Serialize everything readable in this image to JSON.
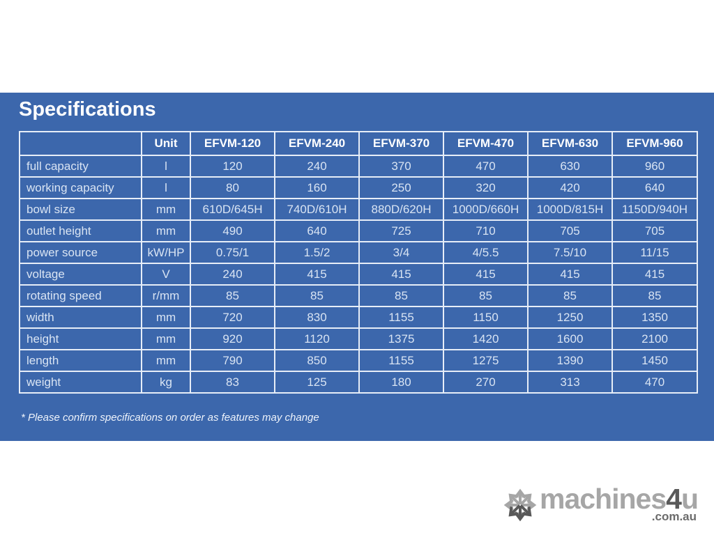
{
  "panel": {
    "title": "Specifications",
    "footnote": "* Please confirm specifications on order as features may change"
  },
  "table": {
    "columns": [
      "",
      "Unit",
      "EFVM-120",
      "EFVM-240",
      "EFVM-370",
      "EFVM-470",
      "EFVM-630",
      "EFVM-960"
    ],
    "rows": [
      {
        "label": "full capacity",
        "unit": "l",
        "values": [
          "120",
          "240",
          "370",
          "470",
          "630",
          "960"
        ]
      },
      {
        "label": "working capacity",
        "unit": "l",
        "values": [
          "80",
          "160",
          "250",
          "320",
          "420",
          "640"
        ]
      },
      {
        "label": "bowl size",
        "unit": "mm",
        "values": [
          "610D/645H",
          "740D/610H",
          "880D/620H",
          "1000D/660H",
          "1000D/815H",
          "1150D/940H"
        ]
      },
      {
        "label": "outlet height",
        "unit": "mm",
        "values": [
          "490",
          "640",
          "725",
          "710",
          "705",
          "705"
        ]
      },
      {
        "label": "power source",
        "unit": "kW/HP",
        "values": [
          "0.75/1",
          "1.5/2",
          "3/4",
          "4/5.5",
          "7.5/10",
          "11/15"
        ]
      },
      {
        "label": "voltage",
        "unit": "V",
        "values": [
          "240",
          "415",
          "415",
          "415",
          "415",
          "415"
        ]
      },
      {
        "label": "rotating speed",
        "unit": "r/mm",
        "values": [
          "85",
          "85",
          "85",
          "85",
          "85",
          "85"
        ]
      },
      {
        "label": "width",
        "unit": "mm",
        "values": [
          "720",
          "830",
          "1155",
          "1150",
          "1250",
          "1350"
        ]
      },
      {
        "label": "height",
        "unit": "mm",
        "values": [
          "920",
          "1120",
          "1375",
          "1420",
          "1600",
          "2100"
        ]
      },
      {
        "label": "length",
        "unit": "mm",
        "values": [
          "790",
          "850",
          "1155",
          "1275",
          "1390",
          "1450"
        ]
      },
      {
        "label": "weight",
        "unit": "kg",
        "values": [
          "83",
          "125",
          "180",
          "270",
          "313",
          "470"
        ]
      }
    ]
  },
  "logo": {
    "icon": "snowflake-asterisk-icon",
    "part1": "machines",
    "part2": "4",
    "part3": "u",
    "domain": ".com.au"
  },
  "colors": {
    "panel_blue": "#3c67ac",
    "grid_line": "#e7eef8",
    "header_text": "#ffffff",
    "cell_text": "#d9e4f3",
    "page_background": "#ffffff",
    "logo_light_gray": "#a6a6a6",
    "logo_dark_gray": "#595959"
  }
}
